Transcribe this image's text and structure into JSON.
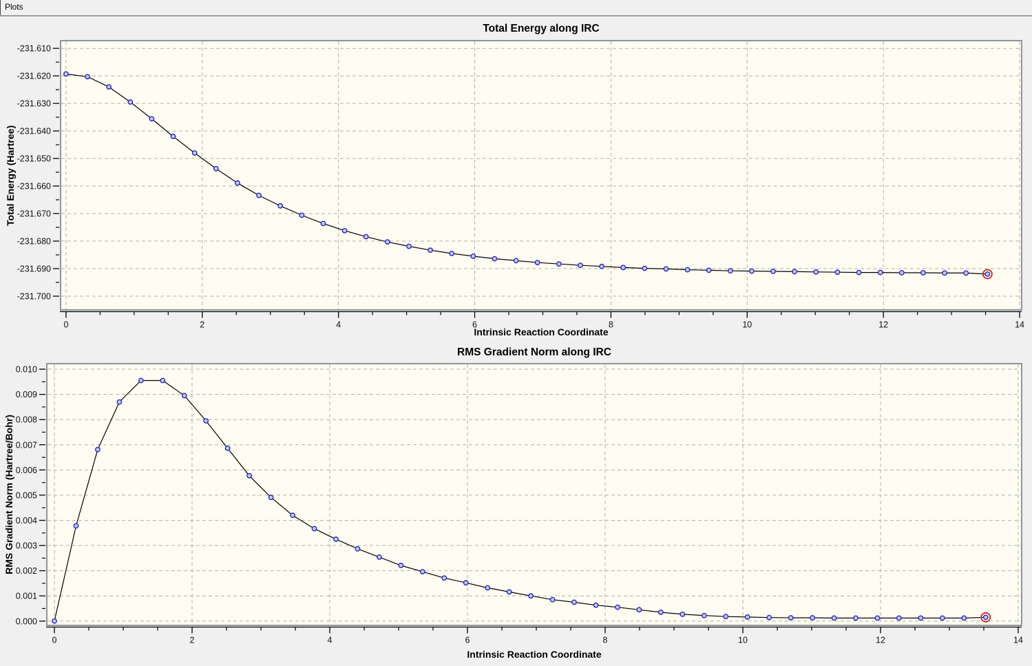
{
  "window": {
    "title": "Plots"
  },
  "colors": {
    "window_bg": "#f0f0f0",
    "plot_bg": "#fffdf2",
    "plot_border": "#8f959c",
    "gridline": "#aeaea6",
    "axis": "#000000",
    "line": "#000000",
    "marker_stroke": "#2525c4",
    "marker_fill": "#c6ccf2",
    "highlight_ring": "#cc2222",
    "text": "#111111"
  },
  "chart_data": [
    {
      "type": "line",
      "title": "Total Energy along IRC",
      "xlabel": "Intrinsic Reaction Coordinate",
      "ylabel": "Total Energy (Hartree)",
      "xlim": [
        -0.08,
        14.03
      ],
      "ylim": [
        -231.705,
        -231.6072
      ],
      "grid": true,
      "x_major_ticks": [
        0,
        2,
        4,
        6,
        8,
        10,
        12,
        14
      ],
      "x_tick_labels": [
        "0",
        "2",
        "4",
        "6",
        "8",
        "10",
        "12",
        "14"
      ],
      "x_minor_step": 0.5,
      "y_major_ticks": [
        -231.61,
        -231.62,
        -231.63,
        -231.64,
        -231.65,
        -231.66,
        -231.67,
        -231.68,
        -231.69,
        -231.7
      ],
      "y_tick_labels": [
        "-231.610",
        "-231.620",
        "-231.630",
        "-231.640",
        "-231.650",
        "-231.660",
        "-231.670",
        "-231.680",
        "-231.690",
        "-231.700"
      ],
      "y_minor_step": 0.005,
      "highlight_last_point": true,
      "x": [
        0.0,
        0.315,
        0.629,
        0.944,
        1.258,
        1.573,
        1.888,
        2.202,
        2.517,
        2.831,
        3.146,
        3.461,
        3.775,
        4.09,
        4.404,
        4.719,
        5.034,
        5.348,
        5.663,
        5.977,
        6.292,
        6.607,
        6.921,
        7.236,
        7.55,
        7.865,
        8.18,
        8.494,
        8.809,
        9.123,
        9.438,
        9.753,
        10.067,
        10.382,
        10.696,
        11.011,
        11.326,
        11.64,
        11.955,
        12.269,
        12.584,
        12.899,
        13.213,
        13.528
      ],
      "y": [
        -231.6193,
        -231.6203,
        -231.624,
        -231.6295,
        -231.6356,
        -231.642,
        -231.648,
        -231.6537,
        -231.6589,
        -231.6634,
        -231.6672,
        -231.6706,
        -231.6736,
        -231.6762,
        -231.6784,
        -231.6803,
        -231.6819,
        -231.6833,
        -231.6845,
        -231.6855,
        -231.6864,
        -231.6871,
        -231.6878,
        -231.6883,
        -231.6888,
        -231.6892,
        -231.6896,
        -231.6899,
        -231.6901,
        -231.6904,
        -231.6906,
        -231.6908,
        -231.6909,
        -231.691,
        -231.6911,
        -231.6912,
        -231.6913,
        -231.6914,
        -231.6914,
        -231.6915,
        -231.6915,
        -231.6916,
        -231.6916,
        -231.692
      ]
    },
    {
      "type": "line",
      "title": "RMS Gradient Norm along IRC",
      "xlabel": "Intrinsic Reaction Coordinate",
      "ylabel": "RMS Gradient Norm (Hartree/Bohr)",
      "xlim": [
        -0.11,
        14.05
      ],
      "ylim": [
        -0.00017,
        0.01022
      ],
      "grid": true,
      "x_major_ticks": [
        0,
        2,
        4,
        6,
        8,
        10,
        12,
        14
      ],
      "x_tick_labels": [
        "0",
        "2",
        "4",
        "6",
        "8",
        "10",
        "12",
        "14"
      ],
      "x_minor_step": 0.5,
      "y_major_ticks": [
        0.0,
        0.001,
        0.002,
        0.003,
        0.004,
        0.005,
        0.006,
        0.007,
        0.008,
        0.009,
        0.01
      ],
      "y_tick_labels": [
        "0.000",
        "0.001",
        "0.002",
        "0.003",
        "0.004",
        "0.005",
        "0.006",
        "0.007",
        "0.008",
        "0.009",
        "0.010"
      ],
      "y_minor_step": 0.0005,
      "highlight_last_point": true,
      "x": [
        0.0,
        0.315,
        0.629,
        0.944,
        1.258,
        1.573,
        1.888,
        2.202,
        2.517,
        2.831,
        3.146,
        3.461,
        3.775,
        4.09,
        4.404,
        4.719,
        5.034,
        5.348,
        5.663,
        5.977,
        6.292,
        6.607,
        6.921,
        7.236,
        7.55,
        7.865,
        8.18,
        8.494,
        8.809,
        9.123,
        9.438,
        9.753,
        10.067,
        10.382,
        10.696,
        11.011,
        11.326,
        11.64,
        11.955,
        12.269,
        12.584,
        12.899,
        13.213,
        13.528
      ],
      "y": [
        0.0,
        0.00378,
        0.00681,
        0.0087,
        0.00955,
        0.00955,
        0.00895,
        0.00795,
        0.00686,
        0.00577,
        0.00491,
        0.0042,
        0.00367,
        0.00325,
        0.00287,
        0.00254,
        0.00221,
        0.00196,
        0.00171,
        0.00152,
        0.00132,
        0.00116,
        0.001,
        0.00085,
        0.00075,
        0.00063,
        0.00055,
        0.00045,
        0.00035,
        0.00027,
        0.00022,
        0.00018,
        0.00016,
        0.00014,
        0.00013,
        0.00013,
        0.00012,
        0.00012,
        0.00012,
        0.00012,
        0.00012,
        0.00012,
        0.00012,
        0.00015
      ]
    }
  ]
}
